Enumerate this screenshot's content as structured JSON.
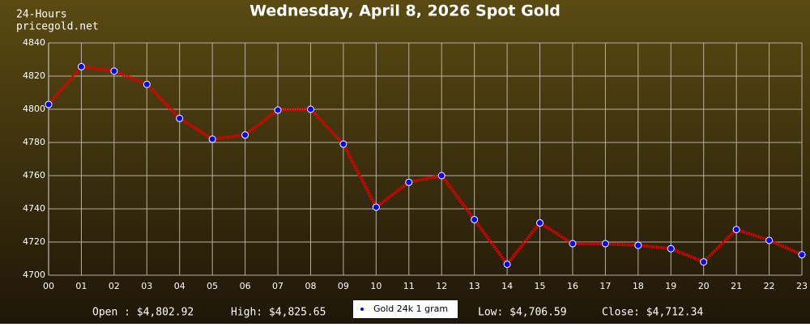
{
  "chart_data": {
    "type": "line",
    "title": "Wednesday, April 8, 2026 Spot Gold",
    "corner_labels": [
      "24-Hours",
      "pricegold.net"
    ],
    "categories": [
      "00",
      "01",
      "02",
      "03",
      "04",
      "05",
      "06",
      "07",
      "08",
      "09",
      "10",
      "11",
      "12",
      "13",
      "14",
      "15",
      "16",
      "17",
      "18",
      "19",
      "20",
      "21",
      "22",
      "23"
    ],
    "series": [
      {
        "name": "Gold 24k 1 gram",
        "color": "#e00000",
        "marker_color": "#0000ff",
        "values": [
          4802.92,
          4825.65,
          4823,
          4815,
          4794.5,
          4782,
          4784.5,
          4799.5,
          4800,
          4779,
          4741,
          4756,
          4760,
          4733.5,
          4706.59,
          4731.5,
          4719,
          4719,
          4718,
          4716,
          4708,
          4727.5,
          4721,
          4712.34
        ]
      }
    ],
    "ylim": [
      4700,
      4840
    ],
    "yticks": [
      4700,
      4720,
      4740,
      4760,
      4780,
      4800,
      4820,
      4840
    ],
    "grid": true,
    "stats": [
      "Open : $4,802.92",
      "High: $4,825.65",
      "Low: $4,706.59",
      "Close: $4,712.34"
    ]
  }
}
